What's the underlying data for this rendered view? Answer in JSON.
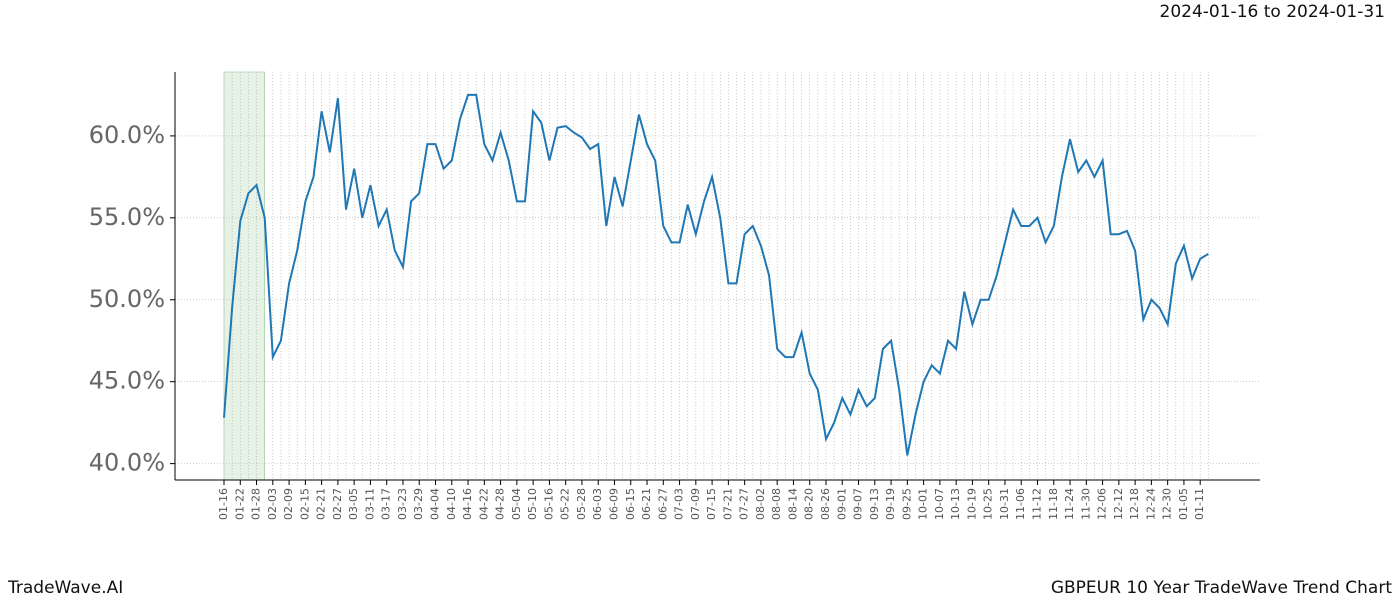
{
  "chart_data": {
    "type": "line",
    "title": "2024-01-16 to 2024-01-31",
    "footer_left": "TradeWave.AI",
    "footer_right": "GBPEUR 10 Year TradeWave Trend Chart",
    "categories": [
      "01-16",
      null,
      "01-22",
      null,
      "01-28",
      null,
      "02-03",
      null,
      "02-09",
      null,
      "02-15",
      null,
      "02-21",
      null,
      "02-27",
      null,
      "03-05",
      null,
      "03-11",
      null,
      "03-17",
      null,
      "03-23",
      null,
      "03-29",
      null,
      "04-04",
      null,
      "04-10",
      null,
      "04-16",
      null,
      "04-22",
      null,
      "04-28",
      null,
      "05-04",
      null,
      "05-10",
      null,
      "05-16",
      null,
      "05-22",
      null,
      "05-28",
      null,
      "06-03",
      null,
      "06-09",
      null,
      "06-15",
      null,
      "06-21",
      null,
      "06-27",
      null,
      "07-03",
      null,
      "07-09",
      null,
      "07-15",
      null,
      "07-21",
      null,
      "07-27",
      null,
      "08-02",
      null,
      "08-08",
      null,
      "08-14",
      null,
      "08-20",
      null,
      "08-26",
      null,
      "09-01",
      null,
      "09-07",
      null,
      "09-13",
      null,
      "09-19",
      null,
      "09-25",
      null,
      "10-01",
      null,
      "10-07",
      null,
      "10-13",
      null,
      "10-19",
      null,
      "10-25",
      null,
      "10-31",
      null,
      "11-06",
      null,
      "11-12",
      null,
      "11-18",
      null,
      "11-24",
      null,
      "11-30",
      null,
      "12-06",
      null,
      "12-12",
      null,
      "12-18",
      null,
      "12-24",
      null,
      "12-30",
      null,
      "01-05",
      null,
      "01-11",
      null
    ],
    "series": [
      {
        "color": "#1f77b4",
        "values": [
          42.8,
          49.5,
          54.8,
          56.5,
          57,
          55,
          46.5,
          47.5,
          51,
          53,
          56,
          57.5,
          61.5,
          59,
          62.3,
          55.5,
          58,
          55,
          57,
          54.5,
          55.5,
          53,
          52,
          56,
          56.5,
          59.5,
          59.5,
          58,
          58.5,
          61,
          62.5,
          62.5,
          59.5,
          58.5,
          60.2,
          58.5,
          56,
          56,
          61.5,
          60.8,
          58.5,
          60.5,
          60.6,
          60.2,
          59.9,
          59.2,
          59.5,
          54.5,
          57.5,
          55.7,
          58.5,
          61.3,
          59.5,
          58.5,
          54.5,
          53.5,
          53.5,
          55.8,
          54,
          56,
          57.5,
          55,
          51,
          51,
          54,
          54.5,
          53.3,
          51.5,
          47,
          46.5,
          46.5,
          48,
          45.5,
          44.5,
          41.5,
          42.5,
          44,
          43,
          44.5,
          43.5,
          44,
          47,
          47.5,
          44.5,
          40.5,
          43,
          45,
          46,
          45.5,
          47.5,
          47,
          50.5,
          48.5,
          50,
          50,
          51.5,
          53.5,
          55.5,
          54.5,
          54.5,
          55,
          53.5,
          54.5,
          57.5,
          59.8,
          57.8,
          58.5,
          57.5,
          58.5,
          54,
          54,
          54.2,
          53,
          48.8,
          50,
          49.5,
          48.5,
          52.2,
          53.3,
          51.3,
          52.5,
          52.8
        ]
      }
    ],
    "highlight": [
      0,
      5
    ],
    "highlight_color": "#e6f2e6",
    "ylim": [
      39,
      63.9
    ],
    "yticks": [
      {
        "value": 40,
        "label": "40.0%"
      },
      {
        "value": 45,
        "label": "45.0%"
      },
      {
        "value": 50,
        "label": "50.0%"
      },
      {
        "value": 55,
        "label": "55.0%"
      },
      {
        "value": 60,
        "label": "60.0%"
      }
    ],
    "grid": true
  }
}
